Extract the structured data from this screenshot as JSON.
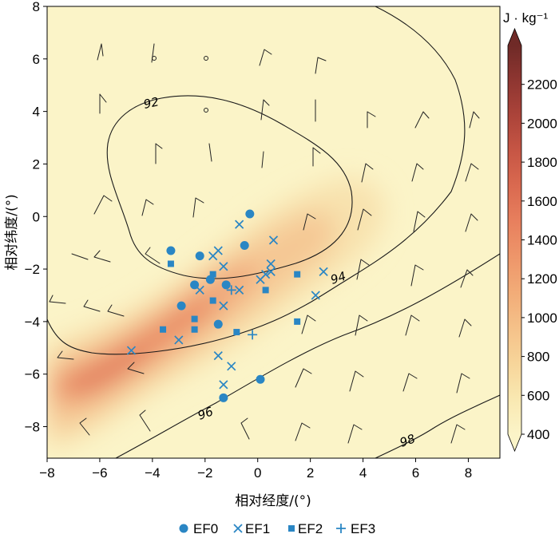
{
  "chart_data": {
    "type": "heatmap",
    "title": "",
    "xlabel": "相对经度/(°)",
    "ylabel": "相对纬度/(°)",
    "xlim": [
      -8,
      9.2
    ],
    "ylim": [
      -9.2,
      8
    ],
    "x_ticks": [
      -8,
      -6,
      -4,
      -2,
      0,
      2,
      4,
      6,
      8
    ],
    "y_ticks": [
      8,
      6,
      4,
      2,
      0,
      -2,
      -4,
      -6,
      -8
    ],
    "x_tick_labels": [
      "−8",
      "−6",
      "−4",
      "−2",
      "0",
      "2",
      "4",
      "6",
      "8"
    ],
    "y_tick_labels": [
      "8",
      "6",
      "4",
      "2",
      "0",
      "−2",
      "−4",
      "−6",
      "−8"
    ],
    "grid": false,
    "colorbar": {
      "unit": "J · kg⁻¹",
      "range": [
        400,
        2400
      ],
      "ticks": [
        2200,
        2000,
        1800,
        1600,
        1400,
        1200,
        1000,
        800,
        600,
        400
      ],
      "colors": [
        "#fbf4c8",
        "#f9e8b1",
        "#f7d59a",
        "#f5c189",
        "#f2ac78",
        "#ee966a",
        "#e8805e",
        "#da6a50",
        "#c75645",
        "#ac443a",
        "#8f3631",
        "#6f2a27"
      ]
    },
    "contours": [
      {
        "label": "92",
        "level": 92
      },
      {
        "label": "94",
        "level": 94
      },
      {
        "label": "96",
        "level": 96
      },
      {
        "label": "98",
        "level": 98
      }
    ],
    "cape_field": [
      {
        "x": -5.0,
        "y": -5.7,
        "value": 1650
      },
      {
        "x": -3.2,
        "y": -4.2,
        "value": 1450
      },
      {
        "x": -1.8,
        "y": -3.0,
        "value": 1200
      },
      {
        "x": 0.2,
        "y": -1.5,
        "value": 900
      },
      {
        "x": 2.0,
        "y": -1.5,
        "value": 700
      }
    ],
    "legend": {
      "position": "bottom",
      "entries": [
        {
          "label": "EF0",
          "marker": "circle"
        },
        {
          "label": "EF1",
          "marker": "x"
        },
        {
          "label": "EF2",
          "marker": "square"
        },
        {
          "label": "EF3",
          "marker": "plus"
        }
      ],
      "marker_color": "#2a86c4"
    },
    "series": [
      {
        "name": "EF0",
        "marker": "circle",
        "points": [
          [
            -0.3,
            0.1
          ],
          [
            -0.5,
            -1.1
          ],
          [
            -3.3,
            -1.3
          ],
          [
            -2.2,
            -1.5
          ],
          [
            -2.4,
            -2.6
          ],
          [
            -1.8,
            -2.4
          ],
          [
            -1.2,
            -2.6
          ],
          [
            -2.9,
            -3.4
          ],
          [
            -1.5,
            -4.1
          ],
          [
            0.1,
            -6.2
          ],
          [
            -1.3,
            -6.9
          ]
        ]
      },
      {
        "name": "EF1",
        "marker": "x",
        "points": [
          [
            -0.7,
            -0.3
          ],
          [
            0.6,
            -0.9
          ],
          [
            -1.5,
            -1.3
          ],
          [
            -1.7,
            -1.5
          ],
          [
            -1.3,
            -1.9
          ],
          [
            0.5,
            -1.8
          ],
          [
            0.5,
            -2.1
          ],
          [
            0.3,
            -2.2
          ],
          [
            0.1,
            -2.4
          ],
          [
            2.5,
            -2.1
          ],
          [
            -2.2,
            -2.8
          ],
          [
            -0.7,
            -2.8
          ],
          [
            -1.3,
            -3.4
          ],
          [
            2.2,
            -3.0
          ],
          [
            -1.5,
            -5.3
          ],
          [
            -1.0,
            -5.7
          ],
          [
            -1.3,
            -6.4
          ],
          [
            -3.0,
            -4.7
          ],
          [
            -4.8,
            -5.1
          ]
        ]
      },
      {
        "name": "EF2",
        "marker": "square",
        "points": [
          [
            -3.3,
            -1.8
          ],
          [
            -1.7,
            -2.2
          ],
          [
            1.5,
            -2.2
          ],
          [
            0.3,
            -2.8
          ],
          [
            -1.7,
            -3.2
          ],
          [
            -2.4,
            -3.9
          ],
          [
            -2.4,
            -4.3
          ],
          [
            -3.6,
            -4.3
          ],
          [
            1.5,
            -4.0
          ],
          [
            -0.8,
            -4.4
          ]
        ]
      },
      {
        "name": "EF3",
        "marker": "plus",
        "points": [
          [
            -1.0,
            -2.8
          ],
          [
            -0.2,
            -4.5
          ]
        ]
      }
    ]
  }
}
